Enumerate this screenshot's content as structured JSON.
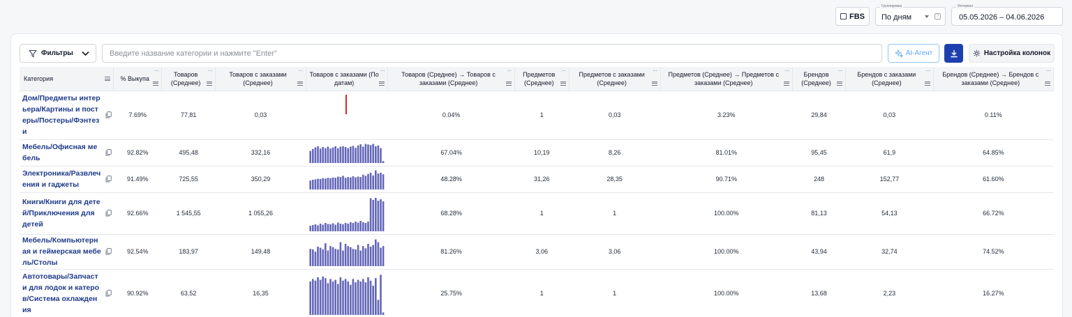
{
  "topbar": {
    "fbs_label": "FBS",
    "grouping": {
      "legend": "Группировка",
      "value": "По дням"
    },
    "interval": {
      "legend": "Интервал",
      "value": "05.05.2026 – 04.06.2026"
    }
  },
  "toolbar": {
    "filters_label": "Фильтры",
    "search_placeholder": "Введите название категории и нажмите \"Enter\"",
    "ai_label": "AI-Агент",
    "columns_label": "Настройка колонок"
  },
  "colors": {
    "accent": "#1e40af",
    "bar": "#6366b8",
    "link": "#1e3a8a",
    "spark_red": "#dc2626"
  },
  "table": {
    "columns": [
      "Категория",
      "% Выкупа",
      "Товаров (Среднее)",
      "Товаров с заказами (Среднее)",
      "Товаров с заказами (По датам)",
      "Товаров (Среднее) → Товаров с заказами (Среднее)",
      "Предметов (Среднее)",
      "Предметов с заказами (Среднее)",
      "Предметов (Среднее) → Предметов с заказами (Среднее)",
      "Брендов (Среднее)",
      "Брендов с заказами (Среднее)",
      "Брендов (Среднее) → Брендов с заказами (Среднее)"
    ],
    "rows": [
      {
        "category": "Дом/Предметы интерьера/Картины и постеры/Постеры/Фэнтези",
        "buyout": "7.69%",
        "goods": "77,81",
        "goods_orders": "0,03",
        "spark": [],
        "spark_single_red": true,
        "goods_conv": "0.04%",
        "items": "1",
        "items_orders": "0,03",
        "items_conv": "3.23%",
        "brands": "29,84",
        "brands_orders": "0,03",
        "brands_conv": "0.11%"
      },
      {
        "category": "Мебель/Офисная мебель",
        "buyout": "92.82%",
        "goods": "495,48",
        "goods_orders": "332,16",
        "spark": [
          0.62,
          0.72,
          0.8,
          0.86,
          0.74,
          0.82,
          0.76,
          0.84,
          0.74,
          0.8,
          0.86,
          0.76,
          0.84,
          0.86,
          0.82,
          0.76,
          0.84,
          0.88,
          0.78,
          0.9,
          0.96,
          0.84,
          0.98,
          0.95,
          0.92,
          0.98,
          0.86,
          0.9,
          0.76,
          0.1
        ],
        "spark_single_red": false,
        "goods_conv": "67.04%",
        "items": "10,19",
        "items_orders": "8,26",
        "items_conv": "81.01%",
        "brands": "95,45",
        "brands_orders": "61,9",
        "brands_conv": "64.85%"
      },
      {
        "category": "Электроника/Развлечения и гаджеты",
        "buyout": "91.49%",
        "goods": "725,55",
        "goods_orders": "350,29",
        "spark": [
          0.46,
          0.5,
          0.52,
          0.55,
          0.54,
          0.58,
          0.56,
          0.6,
          0.58,
          0.62,
          0.6,
          0.66,
          0.64,
          0.7,
          0.6,
          0.64,
          0.62,
          0.68,
          0.62,
          0.66,
          0.64,
          0.76,
          0.7,
          0.8,
          0.86,
          0.72,
          0.98,
          0.82,
          0.86,
          0.78
        ],
        "spark_single_red": false,
        "goods_conv": "48.28%",
        "items": "31,26",
        "items_orders": "28,35",
        "items_conv": "90.71%",
        "brands": "248",
        "brands_orders": "152,77",
        "brands_conv": "61.60%"
      },
      {
        "category": "Книги/Книги для детей/Приключения для детей",
        "buyout": "92.66%",
        "goods": "1 545,55",
        "goods_orders": "1 055,26",
        "spark": [
          0.16,
          0.18,
          0.2,
          0.17,
          0.22,
          0.19,
          0.24,
          0.21,
          0.2,
          0.23,
          0.19,
          0.25,
          0.22,
          0.2,
          0.24,
          0.22,
          0.26,
          0.24,
          0.28,
          0.25,
          0.3,
          0.26,
          0.24,
          0.28,
          0.95,
          0.9,
          0.96,
          0.88,
          0.92,
          0.86
        ],
        "spark_single_red": false,
        "goods_conv": "68.28%",
        "items": "1",
        "items_orders": "1",
        "items_conv": "100.00%",
        "brands": "81,13",
        "brands_orders": "54,13",
        "brands_conv": "66.72%"
      },
      {
        "category": "Мебель/Компьютерная и геймерская мебель/Столы",
        "buyout": "92.54%",
        "goods": "183,97",
        "goods_orders": "149,48",
        "spark": [
          0.62,
          0.6,
          0.52,
          0.7,
          0.66,
          0.6,
          0.82,
          0.56,
          0.72,
          0.68,
          0.62,
          0.6,
          0.86,
          0.56,
          0.8,
          0.72,
          0.68,
          0.62,
          0.6,
          0.76,
          0.56,
          0.72,
          0.64,
          0.8,
          0.7,
          0.76,
          0.96,
          0.86,
          0.66,
          0.72
        ],
        "spark_single_red": false,
        "goods_conv": "81.26%",
        "items": "3,06",
        "items_orders": "3,06",
        "items_conv": "100.00%",
        "brands": "43,94",
        "brands_orders": "32,74",
        "brands_conv": "74.52%"
      },
      {
        "category": "Автотовары/Запчасти для лодок и катеров/Система охлаждения",
        "buyout": "90.92%",
        "goods": "63,52",
        "goods_orders": "16,35",
        "spark": [
          0.8,
          0.86,
          0.82,
          0.9,
          0.84,
          0.92,
          0.88,
          0.76,
          0.86,
          0.8,
          0.84,
          0.74,
          0.9,
          0.82,
          0.86,
          0.8,
          0.72,
          0.86,
          0.78,
          0.84,
          0.8,
          0.86,
          0.78,
          0.9,
          0.82,
          0.7,
          0.88,
          0.36,
          0.96,
          0.06
        ],
        "spark_single_red": false,
        "goods_conv": "25.75%",
        "items": "1",
        "items_orders": "1",
        "items_conv": "100.00%",
        "brands": "13,68",
        "brands_orders": "2,23",
        "brands_conv": "16.27%"
      }
    ]
  }
}
